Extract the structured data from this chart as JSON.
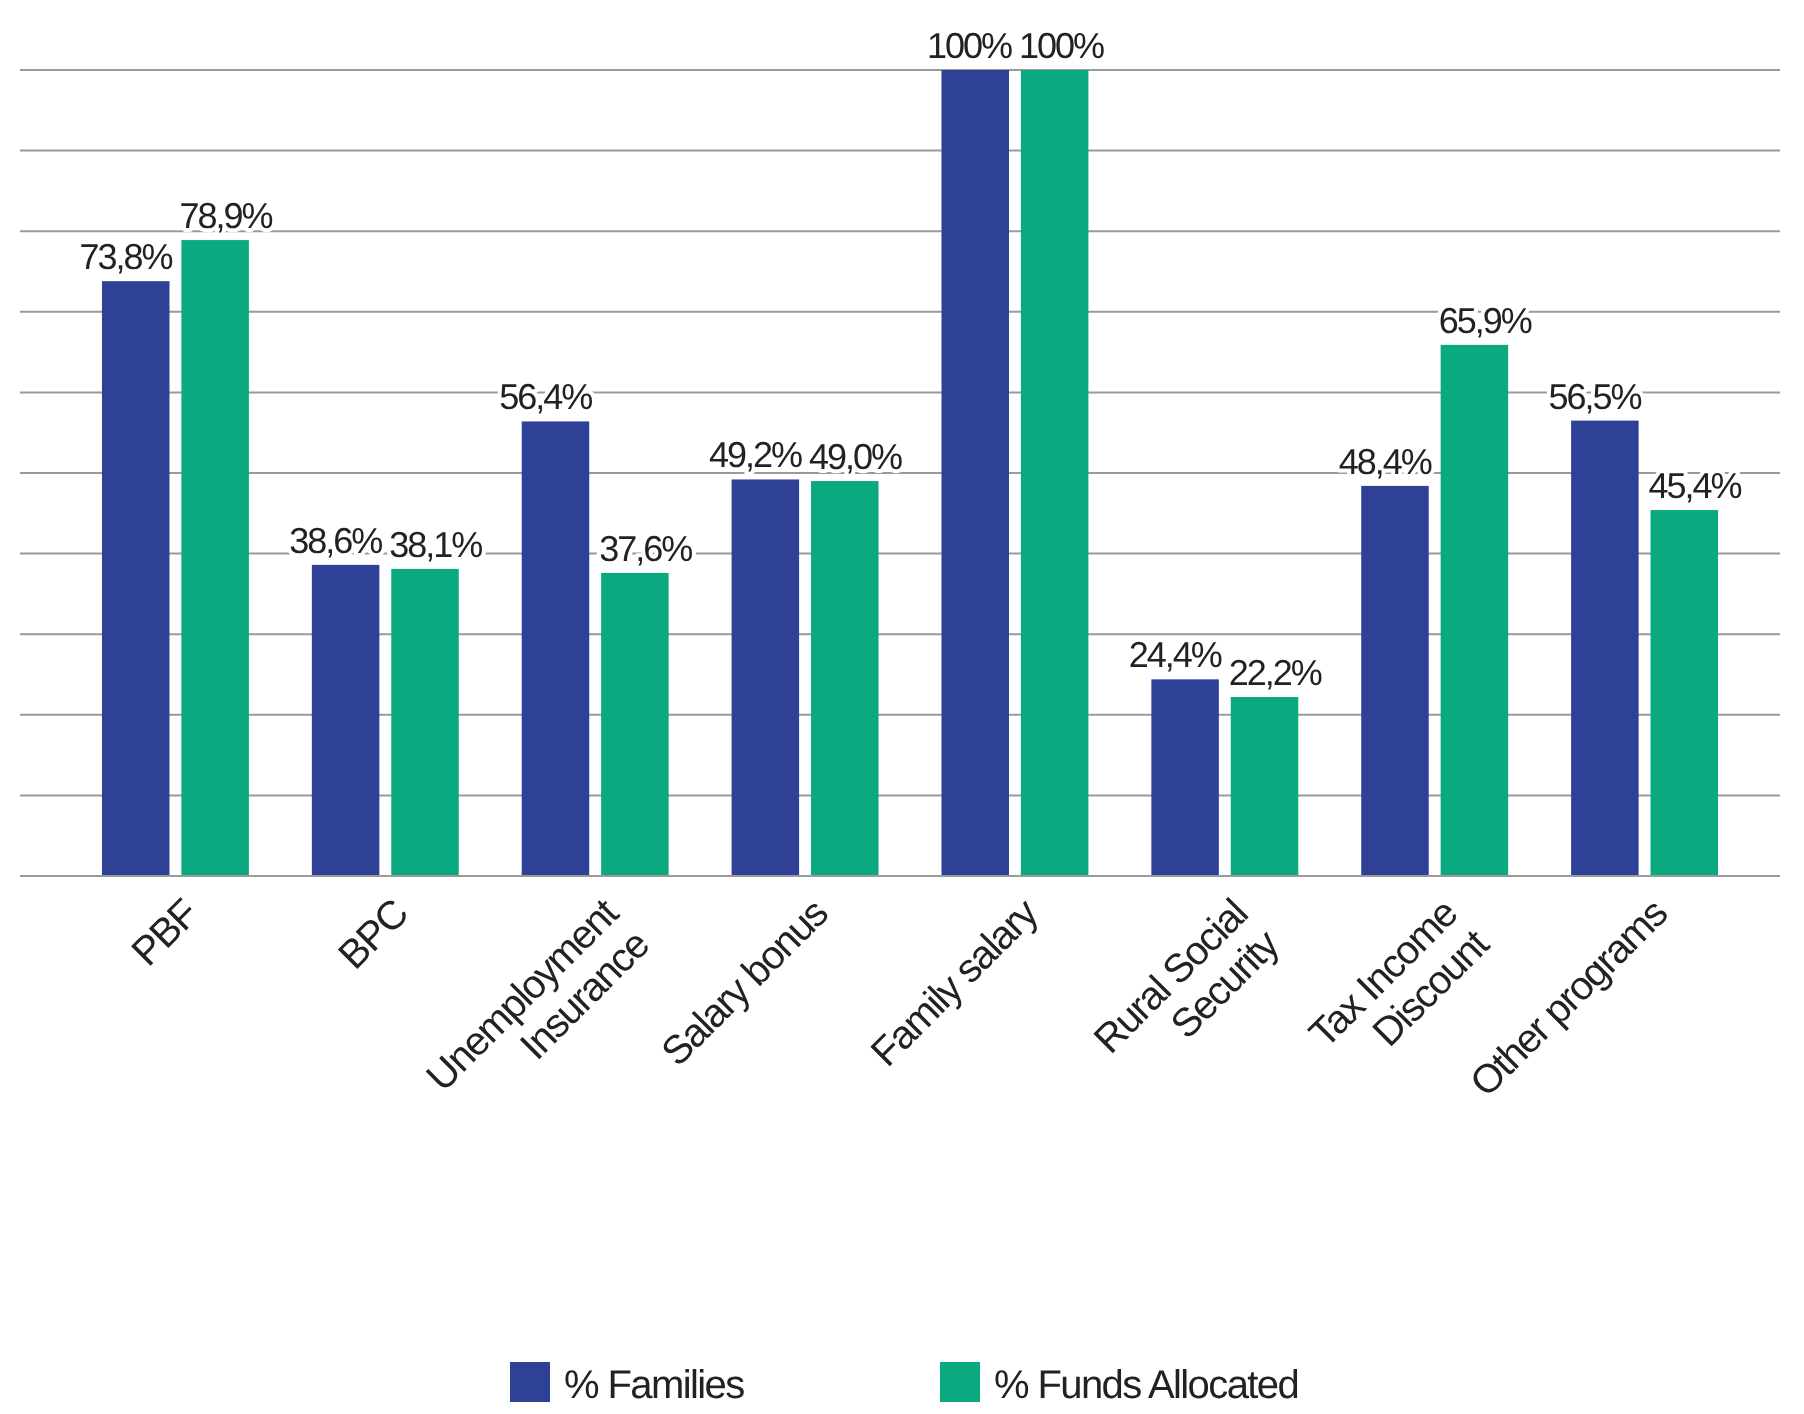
{
  "chart_data": {
    "type": "bar",
    "categories": [
      "PBF",
      "BPC",
      "Unemployment Insurance",
      "Salary bonus",
      "Family salary",
      "Rural Social Security",
      "Tax Income Discount",
      "Other programs"
    ],
    "series": [
      {
        "name": "% Families",
        "color": "#2f4097",
        "values": [
          73.8,
          38.6,
          56.4,
          49.2,
          100,
          24.4,
          48.4,
          56.5
        ],
        "value_labels": [
          "73,8%",
          "38,6%",
          "56,4%",
          "49,2%",
          "100%",
          "24,4%",
          "48,4%",
          "56,5%"
        ]
      },
      {
        "name": "% Funds Allocated",
        "color": "#0aa980",
        "values": [
          78.9,
          38.1,
          37.6,
          49.0,
          100,
          22.2,
          65.9,
          45.4
        ],
        "value_labels": [
          "78,9%",
          "38,1%",
          "37,6%",
          "49,0%",
          "100%",
          "22,2%",
          "65,9%",
          "45,4%"
        ]
      }
    ],
    "ylim": [
      0,
      100
    ],
    "yticks": [
      {
        "value": 0,
        "label": null
      },
      {
        "value": 10,
        "label": null
      },
      {
        "value": 20,
        "label": null
      },
      {
        "value": 30,
        "label": null
      },
      {
        "value": 40,
        "label": null
      },
      {
        "value": 50,
        "label": null
      },
      {
        "value": 60,
        "label": null
      },
      {
        "value": 70,
        "label": null
      },
      {
        "value": 80,
        "label": null
      },
      {
        "value": 90,
        "label": null
      },
      {
        "value": 100,
        "label": null
      }
    ],
    "tick_labels": "x",
    "grid": "y",
    "legend": "bottom"
  }
}
